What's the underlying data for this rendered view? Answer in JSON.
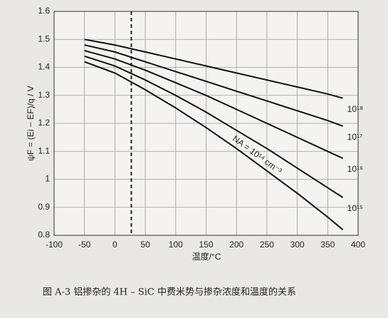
{
  "chart_data": {
    "type": "line",
    "x": [
      -50,
      0,
      50,
      100,
      150,
      200,
      250,
      300,
      350,
      375
    ],
    "series": [
      {
        "name": "10¹⁸",
        "color": "#111111",
        "values": [
          1.5,
          1.48,
          1.455,
          1.43,
          1.405,
          1.38,
          1.355,
          1.33,
          1.305,
          1.29
        ]
      },
      {
        "name": "10¹⁷",
        "color": "#111111",
        "values": [
          1.48,
          1.455,
          1.42,
          1.385,
          1.35,
          1.315,
          1.28,
          1.245,
          1.21,
          1.19
        ]
      },
      {
        "name": "10¹⁶",
        "color": "#111111",
        "values": [
          1.46,
          1.43,
          1.39,
          1.345,
          1.3,
          1.25,
          1.2,
          1.15,
          1.1,
          1.075
        ]
      },
      {
        "name": "10¹⁵",
        "color": "#111111",
        "values": [
          1.44,
          1.405,
          1.355,
          1.3,
          1.24,
          1.175,
          1.11,
          1.04,
          0.97,
          0.935
        ]
      },
      {
        "name": "NA = 10¹⁴ cm⁻³",
        "color": "#111111",
        "values": [
          1.42,
          1.38,
          1.32,
          1.255,
          1.185,
          1.11,
          1.03,
          0.95,
          0.865,
          0.82
        ]
      }
    ],
    "xlim": [
      -100,
      400
    ],
    "xticks": [
      -100,
      -50,
      0,
      50,
      100,
      150,
      200,
      250,
      300,
      350,
      400
    ],
    "ylim": [
      0.8,
      1.6
    ],
    "yticks": [
      0.8,
      0.9,
      1,
      1.1,
      1.2,
      1.3,
      1.4,
      1.5,
      1.6
    ],
    "grid": true,
    "vline_x": 27,
    "x_label": "温度/°C",
    "y_label": "ψF = (Ei − EF)/q / V",
    "caption": "图 A-3   铝掺杂的 4H – SiC 中费米势与掺杂浓度和温度的关系"
  }
}
